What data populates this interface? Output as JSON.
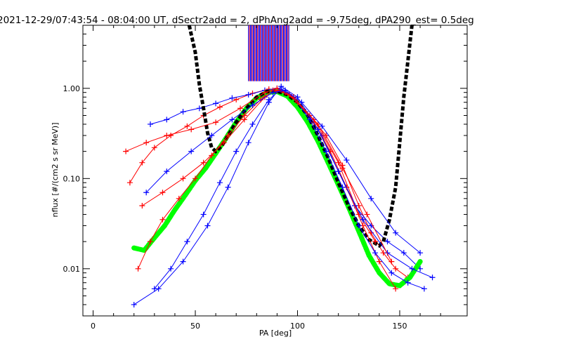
{
  "chart_data": {
    "type": "line",
    "title": "2021-12-29/07:43:54 - 08:04:00 UT, dSectr2add = 2, dPhAng2add = -9.75deg, dPA290_est=   0.5deg",
    "xlabel": "PA [deg]",
    "ylabel": "nflux [#/(cm2 s sr MeV)]",
    "xlim": [
      -5,
      183
    ],
    "ylim": [
      0.003,
      5.0
    ],
    "yscale": "log",
    "x_ticks": [
      0,
      50,
      100,
      150
    ],
    "x_tick_labels": [
      "0",
      "50",
      "100",
      "150"
    ],
    "y_ticks": [
      0.01,
      0.1,
      1.0
    ],
    "y_tick_labels": [
      "0.01",
      "0.10",
      "1.00"
    ],
    "grid": false,
    "legend": "none",
    "colors": {
      "red": "#ff0000",
      "blue": "#0000ff",
      "green": "#00ff00",
      "black": "#000000"
    },
    "series": [
      {
        "color": "red",
        "style": "line+plus",
        "x": [
          18,
          24,
          30,
          38,
          46,
          54,
          62,
          70,
          78,
          86,
          92,
          98,
          106,
          114,
          122,
          130,
          136,
          142,
          148,
          154
        ],
        "y": [
          0.09,
          0.15,
          0.22,
          0.3,
          0.38,
          0.5,
          0.62,
          0.75,
          0.88,
          0.98,
          0.95,
          0.78,
          0.5,
          0.3,
          0.14,
          0.05,
          0.025,
          0.015,
          0.01,
          0.008
        ]
      },
      {
        "color": "blue",
        "style": "line+plus",
        "x": [
          28,
          36,
          44,
          52,
          60,
          68,
          76,
          84,
          90,
          96,
          104,
          112,
          120,
          128,
          136,
          144,
          152,
          160
        ],
        "y": [
          0.4,
          0.45,
          0.55,
          0.6,
          0.68,
          0.78,
          0.85,
          0.95,
          1.0,
          0.85,
          0.55,
          0.3,
          0.12,
          0.05,
          0.03,
          0.02,
          0.015,
          0.01
        ]
      },
      {
        "color": "green",
        "style": "thick-dots",
        "x": [
          20,
          25,
          30,
          35,
          40,
          45,
          50,
          55,
          60,
          65,
          70,
          75,
          80,
          85,
          90,
          95,
          100,
          105,
          110,
          115,
          120,
          125,
          130,
          135,
          140,
          145,
          150,
          155,
          160
        ],
        "y": [
          0.017,
          0.016,
          0.022,
          0.03,
          0.045,
          0.065,
          0.095,
          0.13,
          0.19,
          0.28,
          0.42,
          0.6,
          0.78,
          0.9,
          0.92,
          0.82,
          0.62,
          0.42,
          0.26,
          0.15,
          0.085,
          0.048,
          0.026,
          0.014,
          0.009,
          0.0068,
          0.0065,
          0.008,
          0.012
        ]
      },
      {
        "color": "black",
        "style": "thick-dashes",
        "x": [
          47,
          50,
          52,
          54,
          56,
          58,
          60,
          63,
          66,
          70,
          75,
          80,
          85,
          90,
          95,
          100,
          105,
          110,
          115,
          120,
          125,
          130,
          135,
          140,
          142,
          145,
          148,
          150,
          152,
          154,
          156
        ],
        "y": [
          5.0,
          2.5,
          1.1,
          0.6,
          0.32,
          0.22,
          0.2,
          0.23,
          0.3,
          0.42,
          0.6,
          0.8,
          0.92,
          0.93,
          0.85,
          0.7,
          0.5,
          0.3,
          0.17,
          0.09,
          0.05,
          0.03,
          0.021,
          0.018,
          0.02,
          0.035,
          0.08,
          0.25,
          0.8,
          2.0,
          5.0
        ]
      },
      {
        "color": "red",
        "style": "line+plus",
        "x": [
          22,
          28,
          34,
          42,
          50,
          58,
          66,
          74,
          82,
          88,
          94,
          100,
          108,
          116,
          124,
          132,
          140,
          148
        ],
        "y": [
          0.01,
          0.02,
          0.035,
          0.06,
          0.1,
          0.18,
          0.3,
          0.5,
          0.75,
          0.95,
          0.9,
          0.7,
          0.42,
          0.2,
          0.08,
          0.03,
          0.012,
          0.006
        ]
      },
      {
        "color": "blue",
        "style": "line+plus",
        "x": [
          30,
          38,
          46,
          54,
          62,
          70,
          78,
          86,
          92,
          98,
          106,
          114,
          122,
          130,
          138,
          146,
          154,
          162
        ],
        "y": [
          0.006,
          0.01,
          0.02,
          0.04,
          0.09,
          0.2,
          0.4,
          0.75,
          0.98,
          0.8,
          0.45,
          0.2,
          0.08,
          0.03,
          0.015,
          0.009,
          0.007,
          0.006
        ]
      },
      {
        "color": "red",
        "style": "line+plus",
        "x": [
          16,
          26,
          36,
          48,
          60,
          72,
          84,
          90,
          96,
          108,
          120,
          130,
          138
        ],
        "y": [
          0.2,
          0.25,
          0.3,
          0.35,
          0.42,
          0.6,
          0.9,
          1.0,
          0.85,
          0.45,
          0.15,
          0.04,
          0.02
        ]
      },
      {
        "color": "blue",
        "style": "line+plus",
        "x": [
          20,
          32,
          44,
          56,
          66,
          76,
          86,
          92,
          100,
          110,
          120,
          132,
          144,
          156,
          166
        ],
        "y": [
          0.004,
          0.006,
          0.012,
          0.03,
          0.08,
          0.25,
          0.7,
          1.05,
          0.8,
          0.35,
          0.12,
          0.035,
          0.015,
          0.01,
          0.008
        ]
      },
      {
        "color": "red",
        "style": "line+plus",
        "x": [
          24,
          34,
          44,
          54,
          64,
          74,
          84,
          90,
          98,
          110,
          122,
          134,
          146
        ],
        "y": [
          0.05,
          0.07,
          0.1,
          0.15,
          0.25,
          0.45,
          0.8,
          0.95,
          0.8,
          0.4,
          0.13,
          0.04,
          0.012
        ]
      },
      {
        "color": "blue",
        "style": "line+plus",
        "x": [
          26,
          36,
          48,
          58,
          68,
          78,
          88,
          94,
          102,
          112,
          124,
          136,
          148,
          160
        ],
        "y": [
          0.07,
          0.12,
          0.2,
          0.3,
          0.45,
          0.65,
          0.9,
          0.95,
          0.7,
          0.38,
          0.16,
          0.06,
          0.025,
          0.015
        ]
      }
    ],
    "annotations": {
      "tick_region": {
        "x": [
          76,
          96
        ],
        "description": "dense vertical red and blue tick marks above ~1.2"
      }
    }
  }
}
